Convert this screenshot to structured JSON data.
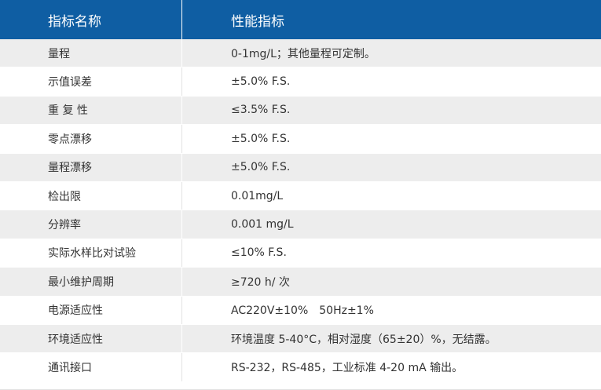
{
  "colors": {
    "header_bg": "#0f5ea3",
    "odd_row_bg": "#ededed",
    "even_row_bg": "#ffffff",
    "text": "#333333"
  },
  "header": {
    "name_label": "指标名称",
    "value_label": "性能指标"
  },
  "rows": [
    {
      "name": "量程",
      "value": "0-1mg/L；其他量程可定制。"
    },
    {
      "name": "示值误差",
      "value": "±5.0% F.S."
    },
    {
      "name": "重 复 性",
      "value": "≤3.5% F.S."
    },
    {
      "name": "零点漂移",
      "value": "±5.0% F.S."
    },
    {
      "name": "量程漂移",
      "value": "±5.0% F.S."
    },
    {
      "name": "检出限",
      "value": "0.01mg/L"
    },
    {
      "name": "分辨率",
      "value": "0.001 mg/L"
    },
    {
      "name": "实际水样比对试验",
      "value": "≤10% F.S."
    },
    {
      "name": "最小维护周期",
      "value": "≥720 h/ 次"
    },
    {
      "name": "电源适应性",
      "value": "AC220V±10%　50Hz±1%"
    },
    {
      "name": "环境适应性",
      "value": "环境温度 5-40°C，相对湿度（65±20）%，无结露。"
    },
    {
      "name": "通讯接口",
      "value": "RS-232，RS-485，工业标准 4-20 mA 输出。"
    }
  ]
}
